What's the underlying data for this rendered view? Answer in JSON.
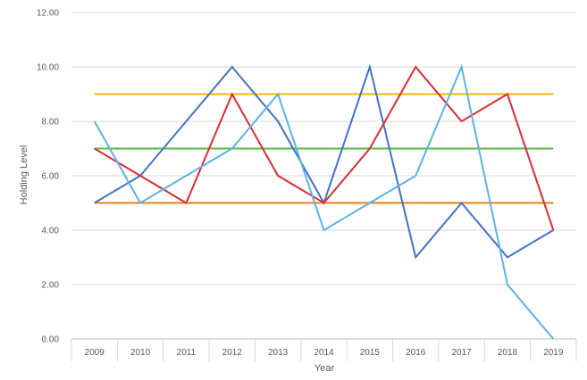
{
  "chart_data": {
    "type": "line",
    "xlabel": "Year",
    "ylabel": "Holding Level",
    "categories": [
      "2009",
      "2010",
      "2011",
      "2012",
      "2013",
      "2014",
      "2015",
      "2016",
      "2017",
      "2018",
      "2019"
    ],
    "ylim": [
      0,
      12
    ],
    "yticks": [
      "0.00",
      "2.00",
      "4.00",
      "6.00",
      "8.00",
      "10.00",
      "12.00"
    ],
    "grid": true,
    "series": [
      {
        "color": "#f2b705",
        "values": [
          9,
          9,
          9,
          9,
          9,
          9,
          9,
          9,
          9,
          9,
          9
        ]
      },
      {
        "color": "#5bba47",
        "values": [
          7,
          7,
          7,
          7,
          7,
          7,
          7,
          7,
          7,
          7,
          7
        ]
      },
      {
        "color": "#f07f09",
        "values": [
          5,
          5,
          5,
          5,
          5,
          5,
          5,
          5,
          5,
          5,
          5
        ]
      },
      {
        "color": "#4472c4",
        "values": [
          5,
          6,
          8,
          10,
          8,
          5,
          10,
          3,
          5,
          3,
          4
        ]
      },
      {
        "color": "#e02b35",
        "values": [
          7,
          6,
          5,
          9,
          6,
          5,
          7,
          10,
          8,
          9,
          4
        ]
      },
      {
        "color": "#5ab4e5",
        "values": [
          8,
          5,
          6,
          7,
          9,
          4,
          5,
          6,
          10,
          2,
          0
        ]
      }
    ]
  }
}
